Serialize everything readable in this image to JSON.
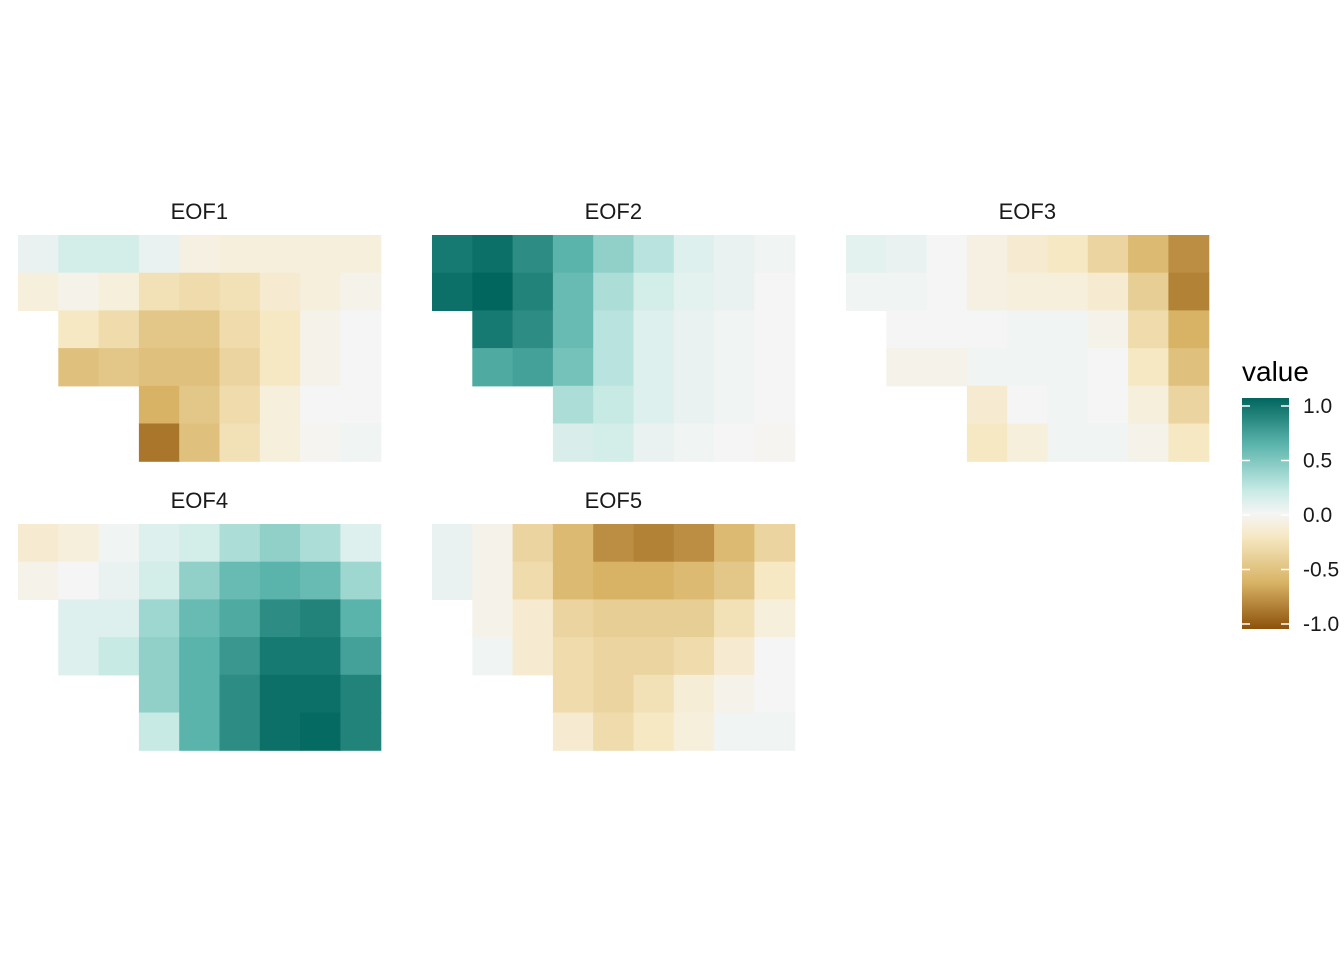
{
  "chart_data": {
    "type": "heatmap",
    "grid": {
      "cols": 9,
      "rows": 6
    },
    "panels": [
      {
        "title": "EOF1",
        "values": [
          [
            0.05,
            0.15,
            0.15,
            0.05,
            -0.08,
            -0.1,
            -0.1,
            -0.1,
            -0.1
          ],
          [
            -0.1,
            -0.05,
            -0.1,
            -0.25,
            -0.3,
            -0.25,
            -0.15,
            -0.1,
            -0.05
          ],
          [
            null,
            -0.2,
            -0.3,
            -0.45,
            -0.45,
            -0.3,
            -0.2,
            -0.05,
            0.0
          ],
          [
            null,
            -0.5,
            -0.45,
            -0.5,
            -0.5,
            -0.35,
            -0.2,
            -0.05,
            0.0
          ],
          [
            null,
            null,
            null,
            -0.6,
            -0.45,
            -0.3,
            -0.1,
            0.0,
            0.0
          ],
          [
            null,
            null,
            null,
            -0.85,
            -0.5,
            -0.25,
            -0.1,
            -0.02,
            0.02
          ]
        ]
      },
      {
        "title": "EOF2",
        "values": [
          [
            0.9,
            0.95,
            0.8,
            0.6,
            0.4,
            0.25,
            0.1,
            0.05,
            0.02
          ],
          [
            0.95,
            1.0,
            0.85,
            0.55,
            0.3,
            0.15,
            0.08,
            0.05,
            0.0
          ],
          [
            null,
            0.9,
            0.8,
            0.55,
            0.25,
            0.1,
            0.05,
            0.02,
            0.0
          ],
          [
            null,
            0.65,
            0.7,
            0.5,
            0.25,
            0.1,
            0.05,
            0.02,
            0.0
          ],
          [
            null,
            null,
            null,
            0.3,
            0.2,
            0.1,
            0.05,
            0.02,
            0.0
          ],
          [
            null,
            null,
            null,
            0.12,
            0.15,
            0.05,
            0.02,
            0.0,
            -0.02
          ]
        ]
      },
      {
        "title": "EOF3",
        "values": [
          [
            0.08,
            0.05,
            0.0,
            -0.08,
            -0.15,
            -0.2,
            -0.35,
            -0.55,
            -0.75
          ],
          [
            0.02,
            0.02,
            0.0,
            -0.08,
            -0.1,
            -0.1,
            -0.15,
            -0.4,
            -0.8
          ],
          [
            null,
            0.0,
            0.0,
            0.0,
            0.02,
            0.02,
            -0.05,
            -0.3,
            -0.6
          ],
          [
            null,
            -0.05,
            -0.05,
            0.02,
            0.02,
            0.02,
            0.0,
            -0.2,
            -0.5
          ],
          [
            null,
            null,
            null,
            -0.15,
            0.0,
            0.02,
            0.0,
            -0.1,
            -0.35
          ],
          [
            null,
            null,
            null,
            -0.2,
            -0.1,
            0.02,
            0.02,
            -0.05,
            -0.2
          ]
        ]
      },
      {
        "title": "EOF4",
        "values": [
          [
            -0.15,
            -0.1,
            0.02,
            0.1,
            0.15,
            0.3,
            0.4,
            0.3,
            0.1
          ],
          [
            -0.05,
            0.0,
            0.05,
            0.15,
            0.4,
            0.55,
            0.6,
            0.55,
            0.35
          ],
          [
            null,
            0.1,
            0.1,
            0.35,
            0.55,
            0.65,
            0.8,
            0.85,
            0.6
          ],
          [
            null,
            0.1,
            0.2,
            0.4,
            0.6,
            0.75,
            0.9,
            0.9,
            0.7
          ],
          [
            null,
            null,
            null,
            0.4,
            0.6,
            0.8,
            0.95,
            0.95,
            0.85
          ],
          [
            null,
            null,
            null,
            0.2,
            0.6,
            0.8,
            0.95,
            0.98,
            0.85
          ]
        ]
      },
      {
        "title": "EOF5",
        "values": [
          [
            0.05,
            -0.05,
            -0.35,
            -0.55,
            -0.75,
            -0.8,
            -0.75,
            -0.55,
            -0.35
          ],
          [
            0.05,
            -0.05,
            -0.3,
            -0.55,
            -0.6,
            -0.6,
            -0.55,
            -0.45,
            -0.2
          ],
          [
            null,
            -0.05,
            -0.15,
            -0.35,
            -0.4,
            -0.4,
            -0.4,
            -0.25,
            -0.1
          ],
          [
            null,
            0.02,
            -0.15,
            -0.3,
            -0.35,
            -0.35,
            -0.3,
            -0.15,
            0.0
          ],
          [
            null,
            null,
            null,
            -0.3,
            -0.35,
            -0.25,
            -0.12,
            -0.05,
            0.0
          ],
          [
            null,
            null,
            null,
            -0.15,
            -0.3,
            -0.2,
            -0.1,
            0.02,
            0.02
          ]
        ]
      }
    ],
    "legend": {
      "title": "value",
      "range": [
        -1.0,
        1.0
      ],
      "ticks": [
        1.0,
        0.5,
        0.0,
        -0.5,
        -1.0
      ],
      "tick_labels": [
        "1.0",
        "0.5",
        "0.0",
        "-0.5",
        "-1.0"
      ],
      "placement": "right"
    },
    "colors": {
      "low": "#8C510A",
      "mid_low": "#D8B365",
      "mid_low2": "#F6E8C3",
      "mid": "#F5F5F5",
      "mid_high2": "#C7EAE5",
      "mid_high": "#5AB4AC",
      "high": "#01665E"
    }
  }
}
